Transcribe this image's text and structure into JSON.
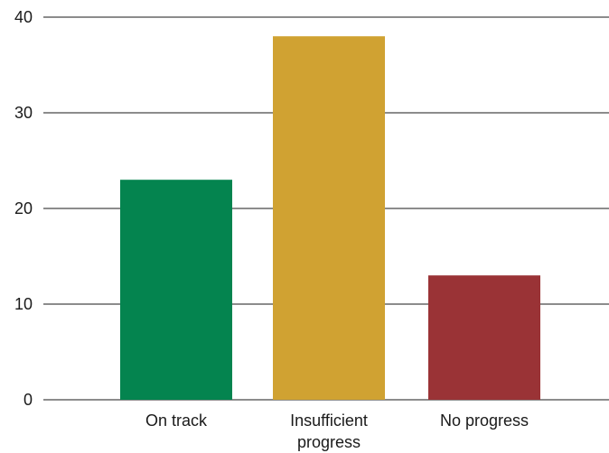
{
  "chart_data": {
    "type": "bar",
    "categories": [
      "On track",
      "Insufficient progress",
      "No progress"
    ],
    "category_label_lines": [
      [
        "On track"
      ],
      [
        "Insufficient",
        "progress"
      ],
      [
        "No progress"
      ]
    ],
    "values": [
      23,
      38,
      13
    ],
    "colors": [
      "#04844f",
      "#d0a232",
      "#9a3336"
    ],
    "title": "",
    "xlabel": "",
    "ylabel": "",
    "ylim": [
      0,
      40
    ],
    "yticks": [
      "0",
      "10",
      "20",
      "30",
      "40"
    ],
    "grid": true
  }
}
